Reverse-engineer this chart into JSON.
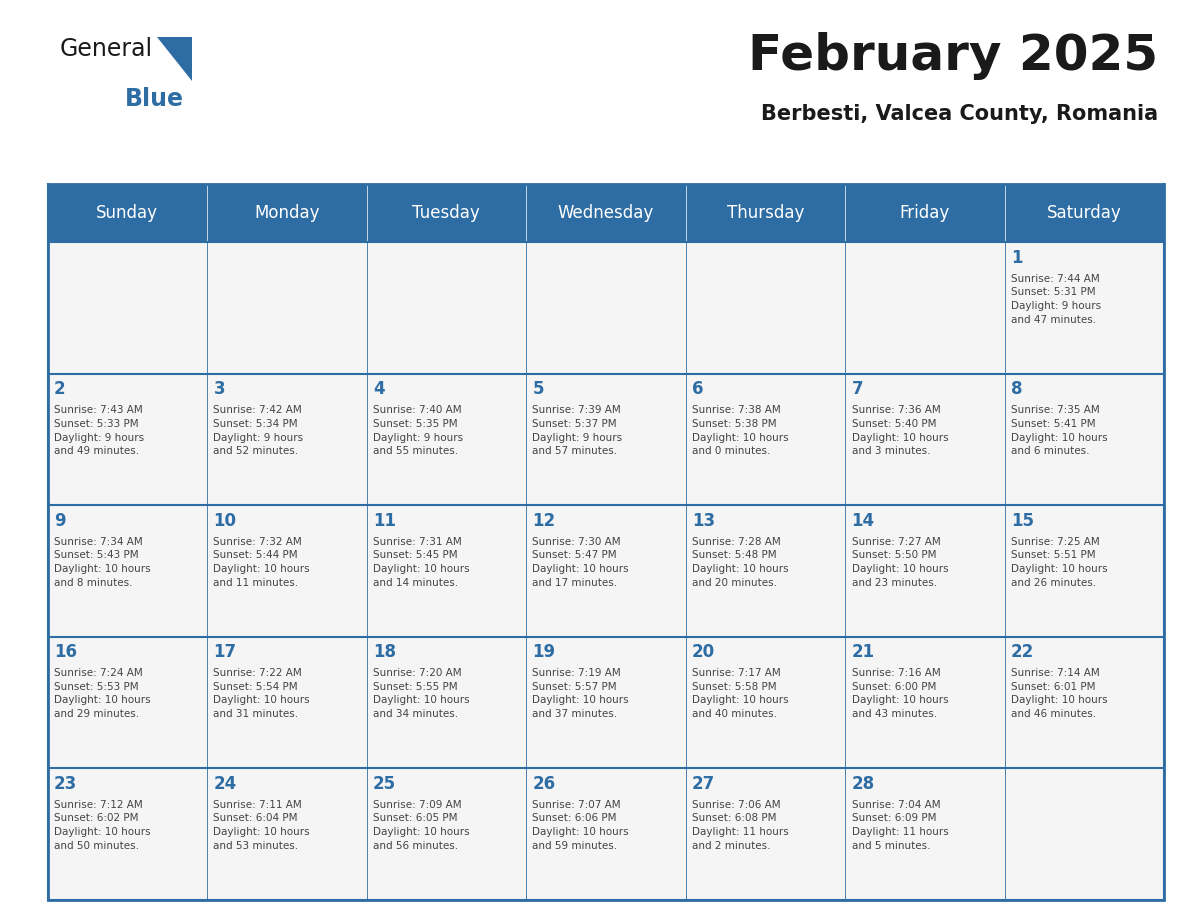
{
  "title": "February 2025",
  "subtitle": "Berbesti, Valcea County, Romania",
  "header_bg": "#2E6DA4",
  "header_text_color": "#FFFFFF",
  "cell_bg": "#F5F5F5",
  "border_color": "#2E6DA4",
  "days_of_week": [
    "Sunday",
    "Monday",
    "Tuesday",
    "Wednesday",
    "Thursday",
    "Friday",
    "Saturday"
  ],
  "title_color": "#1a1a1a",
  "subtitle_color": "#1a1a1a",
  "day_num_color": "#2E6DA4",
  "cell_text_color": "#444444",
  "logo_general_color": "#1a1a1a",
  "logo_blue_color": "#2E6DA4",
  "calendar": [
    [
      null,
      null,
      null,
      null,
      null,
      null,
      {
        "day": 1,
        "sunrise": "7:44 AM",
        "sunset": "5:31 PM",
        "daylight": "9 hours\nand 47 minutes."
      }
    ],
    [
      {
        "day": 2,
        "sunrise": "7:43 AM",
        "sunset": "5:33 PM",
        "daylight": "9 hours\nand 49 minutes."
      },
      {
        "day": 3,
        "sunrise": "7:42 AM",
        "sunset": "5:34 PM",
        "daylight": "9 hours\nand 52 minutes."
      },
      {
        "day": 4,
        "sunrise": "7:40 AM",
        "sunset": "5:35 PM",
        "daylight": "9 hours\nand 55 minutes."
      },
      {
        "day": 5,
        "sunrise": "7:39 AM",
        "sunset": "5:37 PM",
        "daylight": "9 hours\nand 57 minutes."
      },
      {
        "day": 6,
        "sunrise": "7:38 AM",
        "sunset": "5:38 PM",
        "daylight": "10 hours\nand 0 minutes."
      },
      {
        "day": 7,
        "sunrise": "7:36 AM",
        "sunset": "5:40 PM",
        "daylight": "10 hours\nand 3 minutes."
      },
      {
        "day": 8,
        "sunrise": "7:35 AM",
        "sunset": "5:41 PM",
        "daylight": "10 hours\nand 6 minutes."
      }
    ],
    [
      {
        "day": 9,
        "sunrise": "7:34 AM",
        "sunset": "5:43 PM",
        "daylight": "10 hours\nand 8 minutes."
      },
      {
        "day": 10,
        "sunrise": "7:32 AM",
        "sunset": "5:44 PM",
        "daylight": "10 hours\nand 11 minutes."
      },
      {
        "day": 11,
        "sunrise": "7:31 AM",
        "sunset": "5:45 PM",
        "daylight": "10 hours\nand 14 minutes."
      },
      {
        "day": 12,
        "sunrise": "7:30 AM",
        "sunset": "5:47 PM",
        "daylight": "10 hours\nand 17 minutes."
      },
      {
        "day": 13,
        "sunrise": "7:28 AM",
        "sunset": "5:48 PM",
        "daylight": "10 hours\nand 20 minutes."
      },
      {
        "day": 14,
        "sunrise": "7:27 AM",
        "sunset": "5:50 PM",
        "daylight": "10 hours\nand 23 minutes."
      },
      {
        "day": 15,
        "sunrise": "7:25 AM",
        "sunset": "5:51 PM",
        "daylight": "10 hours\nand 26 minutes."
      }
    ],
    [
      {
        "day": 16,
        "sunrise": "7:24 AM",
        "sunset": "5:53 PM",
        "daylight": "10 hours\nand 29 minutes."
      },
      {
        "day": 17,
        "sunrise": "7:22 AM",
        "sunset": "5:54 PM",
        "daylight": "10 hours\nand 31 minutes."
      },
      {
        "day": 18,
        "sunrise": "7:20 AM",
        "sunset": "5:55 PM",
        "daylight": "10 hours\nand 34 minutes."
      },
      {
        "day": 19,
        "sunrise": "7:19 AM",
        "sunset": "5:57 PM",
        "daylight": "10 hours\nand 37 minutes."
      },
      {
        "day": 20,
        "sunrise": "7:17 AM",
        "sunset": "5:58 PM",
        "daylight": "10 hours\nand 40 minutes."
      },
      {
        "day": 21,
        "sunrise": "7:16 AM",
        "sunset": "6:00 PM",
        "daylight": "10 hours\nand 43 minutes."
      },
      {
        "day": 22,
        "sunrise": "7:14 AM",
        "sunset": "6:01 PM",
        "daylight": "10 hours\nand 46 minutes."
      }
    ],
    [
      {
        "day": 23,
        "sunrise": "7:12 AM",
        "sunset": "6:02 PM",
        "daylight": "10 hours\nand 50 minutes."
      },
      {
        "day": 24,
        "sunrise": "7:11 AM",
        "sunset": "6:04 PM",
        "daylight": "10 hours\nand 53 minutes."
      },
      {
        "day": 25,
        "sunrise": "7:09 AM",
        "sunset": "6:05 PM",
        "daylight": "10 hours\nand 56 minutes."
      },
      {
        "day": 26,
        "sunrise": "7:07 AM",
        "sunset": "6:06 PM",
        "daylight": "10 hours\nand 59 minutes."
      },
      {
        "day": 27,
        "sunrise": "7:06 AM",
        "sunset": "6:08 PM",
        "daylight": "11 hours\nand 2 minutes."
      },
      {
        "day": 28,
        "sunrise": "7:04 AM",
        "sunset": "6:09 PM",
        "daylight": "11 hours\nand 5 minutes."
      },
      null
    ]
  ]
}
